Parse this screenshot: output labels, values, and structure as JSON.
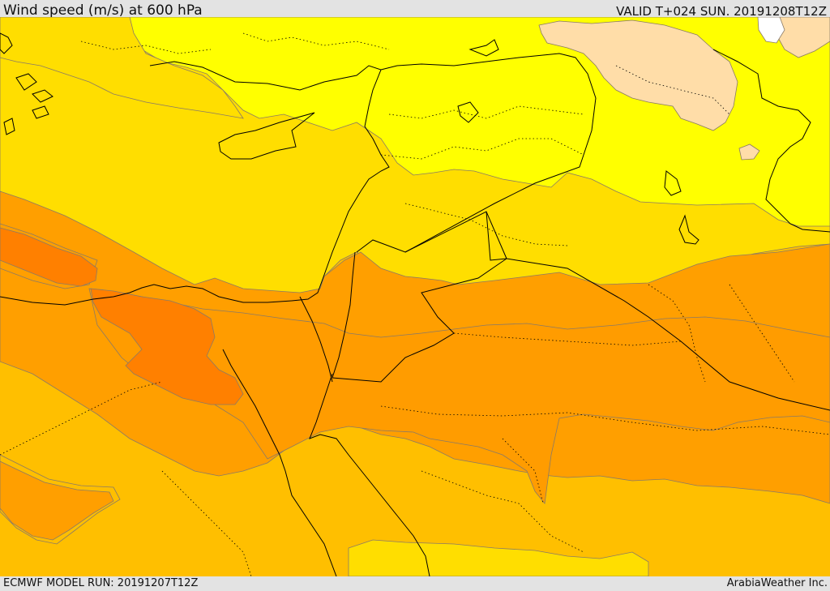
{
  "header": {
    "title": "Wind speed (m/s) at 600 hPa",
    "valid": "VALID T+024 SUN. 20191208T12Z"
  },
  "footer": {
    "model_run": "ECMWF MODEL RUN: 20191207T12Z",
    "brand": "ArabiaWeather Inc."
  },
  "map": {
    "colors": {
      "peach": "#ffdda8",
      "yellow": "#ffff00",
      "gold": "#ffde00",
      "amber": "#ffbf00",
      "orange_light": "#ff9f00",
      "orange": "#ff8000",
      "white": "#ffffff",
      "contour": "#8a7a66",
      "border": "#000000"
    }
  }
}
